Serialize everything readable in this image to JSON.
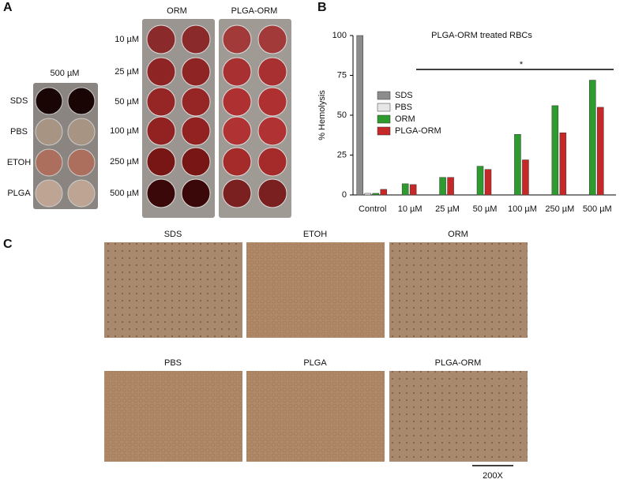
{
  "panel_a": {
    "letter": "A",
    "control_concentration": "500 µM",
    "control_rows": [
      "SDS",
      "PBS",
      "ETOH",
      "PLGA"
    ],
    "plate_titles": [
      "ORM",
      "PLGA-ORM"
    ],
    "concentrations": [
      "10 µM",
      "25 µM",
      "50 µM",
      "100 µM",
      "250 µM",
      "500 µM"
    ]
  },
  "panel_b": {
    "letter": "B"
  },
  "chart_data": {
    "type": "bar",
    "title": "PLGA-ORM treated RBCs",
    "y_label": "% Hemolysis",
    "annotation": "*",
    "categories": [
      "Control",
      "10 µM",
      "25 µM",
      "50 µM",
      "100 µM",
      "250 µM",
      "500 µM"
    ],
    "series": [
      {
        "name": "SDS",
        "color": "#8c8c8c",
        "values": [
          100,
          null,
          null,
          null,
          null,
          null,
          null
        ]
      },
      {
        "name": "PBS",
        "color": "#e6e6e6",
        "values": [
          1,
          null,
          null,
          null,
          null,
          null,
          null
        ]
      },
      {
        "name": "ORM",
        "color": "#2e9b2e",
        "values": [
          1,
          7,
          11,
          18,
          38,
          56,
          72
        ]
      },
      {
        "name": "PLGA-ORM",
        "color": "#c62828",
        "values": [
          3.5,
          6.5,
          11,
          16,
          22,
          39,
          55
        ]
      }
    ],
    "ylim": [
      0,
      100
    ],
    "yticks": [
      0,
      25,
      50,
      75,
      100
    ]
  },
  "panel_c": {
    "letter": "C",
    "images": [
      "SDS",
      "ETOH",
      "ORM",
      "PBS",
      "PLGA",
      "PLGA-ORM"
    ],
    "scale": "200X"
  }
}
